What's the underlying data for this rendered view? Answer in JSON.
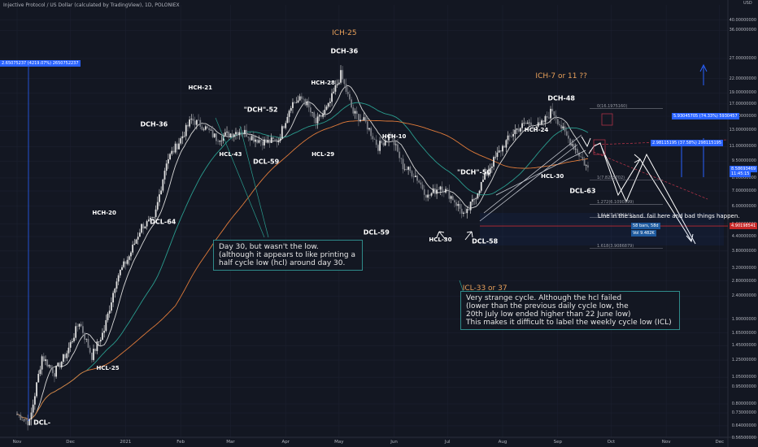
{
  "header": {
    "title": "Injective Protocol / US Dollar (calculated by TradingView), 1D, POLONIEX"
  },
  "colors": {
    "background": "#131722",
    "up": "#e0e0e0",
    "down": "#7a7d85",
    "ma_fast": "#d9d9d9",
    "ma_mid": "#2a9d8f",
    "ma_slow": "#e07b3a",
    "hcl_line": "#c0354a",
    "accent_blue": "#2962ff",
    "red_price": "#c62828"
  },
  "chart_data": {
    "type": "line",
    "scale": "log",
    "ylim": [
      0.56,
      48
    ],
    "y_ticks": [
      "48.00000000",
      "40.00000000",
      "36.00000000",
      "27.00000000",
      "22.00000000",
      "19.00000000",
      "17.00000000",
      "15.00000000",
      "13.00000000",
      "11.00000000",
      "9.50000000",
      "8.00000000",
      "7.00000000",
      "6.00000000",
      "5.00000000",
      "4.40000000",
      "3.80000000",
      "3.20000000",
      "2.80000000",
      "2.40000000",
      "1.90000000",
      "1.65000000",
      "1.45000000",
      "1.25000000",
      "1.05000000",
      "0.95000000",
      "0.80000000",
      "0.73000000",
      "0.64000000",
      "0.56500000"
    ],
    "x_ticks": [
      "Nov",
      "Dec",
      "2021",
      "Feb",
      "Mar",
      "Apr",
      "May",
      "Jun",
      "Jul",
      "Aug",
      "Sep",
      "Oct",
      "Nov",
      "Dec"
    ],
    "series": [
      {
        "dates": [
          "2020-11-01",
          "2020-11-08",
          "2020-11-15",
          "2020-11-22",
          "2020-11-29",
          "2020-12-06",
          "2020-12-13",
          "2020-12-20",
          "2020-12-27",
          "2021-01-03",
          "2021-01-10",
          "2021-01-17",
          "2021-01-24",
          "2021-01-31",
          "2021-02-07",
          "2021-02-14",
          "2021-02-21",
          "2021-02-28",
          "2021-03-07",
          "2021-03-14",
          "2021-03-21",
          "2021-03-28",
          "2021-04-04",
          "2021-04-11",
          "2021-04-18",
          "2021-04-25",
          "2021-05-02",
          "2021-05-09",
          "2021-05-16",
          "2021-05-23",
          "2021-05-30",
          "2021-06-06",
          "2021-06-13",
          "2021-06-20",
          "2021-06-27",
          "2021-07-04",
          "2021-07-11",
          "2021-07-18",
          "2021-07-25",
          "2021-08-01",
          "2021-08-08",
          "2021-08-15",
          "2021-08-22",
          "2021-08-29",
          "2021-09-05",
          "2021-09-12",
          "2021-09-19"
        ],
        "values": [
          0.72,
          0.66,
          1.3,
          1.1,
          1.35,
          1.85,
          1.3,
          1.7,
          2.9,
          3.6,
          4.9,
          5.2,
          9.5,
          11.5,
          14.5,
          13.5,
          12.0,
          12.5,
          13.0,
          12.0,
          11.5,
          11.8,
          17.0,
          18.0,
          14.0,
          16.5,
          23.0,
          15.5,
          14.0,
          11.0,
          12.5,
          9.0,
          8.2,
          6.6,
          7.4,
          6.5,
          5.4,
          7.0,
          9.0,
          11.0,
          13.0,
          14.0,
          13.5,
          16.0,
          12.5,
          10.5,
          8.5
        ]
      }
    ],
    "cycle_labels": [
      {
        "text": "DCL-",
        "date": "2020-11-15",
        "price": 0.66
      },
      {
        "text": "HCH-20",
        "date": "2020-12-20",
        "price": 5.6
      },
      {
        "text": "HCL-25",
        "date": "2020-12-22",
        "price": 1.15
      },
      {
        "text": "DCL-64",
        "date": "2021-01-22",
        "price": 5.1
      },
      {
        "text": "DCH-36",
        "date": "2021-01-17",
        "price": 13.8
      },
      {
        "text": "HCH-21",
        "date": "2021-02-12",
        "price": 20.0
      },
      {
        "text": "HCL-43",
        "date": "2021-03-01",
        "price": 10.2
      },
      {
        "text": "\"DCH\"-52",
        "date": "2021-03-18",
        "price": 16.0
      },
      {
        "text": "DCL-59",
        "date": "2021-03-21",
        "price": 9.4
      },
      {
        "text": "HCH-28",
        "date": "2021-04-22",
        "price": 21.0
      },
      {
        "text": "HCL-29",
        "date": "2021-04-22",
        "price": 10.2
      },
      {
        "text": "DCH-36",
        "date": "2021-05-04",
        "price": 29.0
      },
      {
        "text": "ICH-25",
        "date": "2021-05-04",
        "price": 35.0
      },
      {
        "text": "HCH-10",
        "date": "2021-06-01",
        "price": 12.2
      },
      {
        "text": "DCL-59",
        "date": "2021-05-22",
        "price": 4.6
      },
      {
        "text": "HCL-30",
        "date": "2021-06-27",
        "price": 4.25
      },
      {
        "text": "\"DCH\"-50",
        "date": "2021-07-16",
        "price": 8.5
      },
      {
        "text": "DCL-58",
        "date": "2021-07-22",
        "price": 4.2
      },
      {
        "text": "ICL-33 or 37",
        "date": "2021-07-22",
        "price": 2.6
      },
      {
        "text": "HCH-24",
        "date": "2021-08-20",
        "price": 13.0
      },
      {
        "text": "ICH-7 or 11 ??",
        "date": "2021-09-03",
        "price": 22.5
      },
      {
        "text": "DCH-48",
        "date": "2021-09-03",
        "price": 18.0
      },
      {
        "text": "HCL-30",
        "date": "2021-08-29",
        "price": 8.1
      },
      {
        "text": "DCL-63",
        "date": "2021-09-15",
        "price": 7.0
      }
    ],
    "notes": [
      {
        "lines": [
          "Day 30, but wasn't the low.",
          "(although it appears to like printing a",
          "half cycle low (hcl) around day 30."
        ]
      },
      {
        "lines": [
          "Very strange cycle. Although the hcl failed",
          "(lower than the previous daily cycle low, the",
          "20th July low ended higher than 22 June low)",
          "This makes it difficult to label the weekly cycle low (ICL)"
        ]
      },
      {
        "lines": [
          "Line in the sand. fail here and bad things happen."
        ]
      }
    ],
    "fib_levels": [
      {
        "label": "0(16.1975160)",
        "price": 16.2
      },
      {
        "label": "1(7.8285702)",
        "price": 7.83
      },
      {
        "label": "1.272(6.1090399)",
        "price": 6.11
      },
      {
        "label": "1.414(5.3594641)",
        "price": 5.36
      },
      {
        "label": "1.618(3.9086879)",
        "price": 3.91
      }
    ],
    "tags": [
      {
        "text": "2.65075237 (4219.07%) 2650752237",
        "price": 25.6
      },
      {
        "text": "5.93045705 (74.33%) 5930457",
        "price": 15.0
      },
      {
        "text": "2.98115195 (37.58%) 298115195",
        "price": 11.4
      },
      {
        "text": "58 bars, 58d",
        "price": 4.9
      },
      {
        "text": "Vol 9.482K",
        "price": 4.55
      }
    ],
    "price_labels": [
      {
        "text": "8.58693469",
        "price": 8.75,
        "color": "#2962ff"
      },
      {
        "text": "11:45:15",
        "price": 8.35,
        "color": "#2962ff"
      },
      {
        "text": "4.90198541",
        "price": 4.9,
        "color": "#c62828"
      }
    ],
    "axis_top": "USD"
  }
}
